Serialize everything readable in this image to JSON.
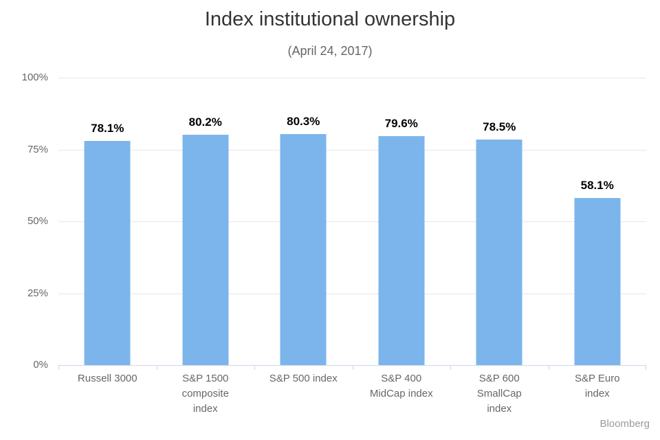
{
  "page": {
    "title": "Index institutional ownership",
    "subtitle": "(April 24, 2017)",
    "credit": "Bloomberg"
  },
  "colors": {
    "bar": "#7cb5ec",
    "gridline": "#e6e6e6",
    "axis_line": "#ccd6eb",
    "axis_label": "#666666",
    "title": "#333333",
    "data_label": "#000000",
    "credit": "#9a9a9a"
  },
  "chart_data": {
    "type": "bar",
    "title": "Index institutional ownership",
    "subtitle": "(April 24, 2017)",
    "categories": [
      "Russell 3000",
      "S&P 1500 composite index",
      "S&P 500 index",
      "S&P 400 MidCap index",
      "S&P 600 SmallCap index",
      "S&P Euro index"
    ],
    "category_label_lines": [
      "Russell 3000",
      "S&P 1500\ncomposite\nindex",
      "S&P 500 index",
      "S&P 400\nMidCap index",
      "S&P 600\nSmallCap\nindex",
      "S&P Euro\nindex"
    ],
    "values": [
      78.1,
      80.2,
      80.3,
      79.6,
      78.5,
      58.1
    ],
    "data_labels": [
      "78.1%",
      "80.2%",
      "80.3%",
      "79.6%",
      "78.5%",
      "58.1%"
    ],
    "xlabel": "",
    "ylabel": "",
    "ylim": [
      0,
      100
    ],
    "y_ticks": [
      0,
      25,
      50,
      75,
      100
    ],
    "y_tick_labels": [
      "0%",
      "25%",
      "50%",
      "75%",
      "100%"
    ],
    "grid": true,
    "legend": false,
    "credit": "Bloomberg"
  }
}
